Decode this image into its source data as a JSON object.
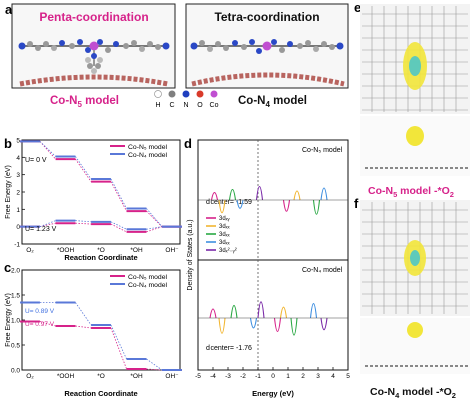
{
  "panels": {
    "a": {
      "letter": "a",
      "left_title": "Penta-coordination",
      "right_title": "Tetra-coordination",
      "left_model": "Co-N",
      "left_model_sub": "5",
      "left_model_tail": " model",
      "right_model": "Co-N",
      "right_model_sub": "4",
      "right_model_tail": " model",
      "legend": [
        {
          "label": "H",
          "color": "#ffffff"
        },
        {
          "label": "C",
          "color": "#7f7f7f"
        },
        {
          "label": "N",
          "color": "#1f3fbf"
        },
        {
          "label": "O",
          "color": "#d93a2a"
        },
        {
          "label": "Co",
          "color": "#c04fd1"
        }
      ]
    },
    "b": {
      "letter": "b",
      "ylabel": "Free Energy (eV)",
      "xlabel": "Reaction Coordinate",
      "annot_top": "U= 0 V",
      "annot_bottom": "U= 1.23 V",
      "categories": [
        "O₂",
        "*OOH",
        "*O",
        "*OH",
        "OH⁻"
      ],
      "legend": [
        {
          "label": "Co-N₅ model",
          "color": "#d6228a"
        },
        {
          "label": "Co-N₄ model",
          "color": "#5a78d8"
        }
      ],
      "yticks": [
        "-1",
        "0",
        "1",
        "2",
        "3",
        "4",
        "5"
      ]
    },
    "c": {
      "letter": "c",
      "ylabel": "Free Energy (eV)",
      "xlabel": "Reaction Coordinate",
      "annot_top": "U= 0.89 V",
      "annot_bottom": "U= 0.97 V",
      "categories": [
        "O₂",
        "*OOH",
        "*O",
        "*OH",
        "OH⁻"
      ],
      "legend": [
        {
          "label": "Co-N₅ model",
          "color": "#d6228a"
        },
        {
          "label": "Co-N₄ model",
          "color": "#5a78d8"
        }
      ],
      "yticks": [
        "0.0",
        "0.5",
        "1.0",
        "1.5",
        "2.0"
      ]
    },
    "d": {
      "letter": "d",
      "ylabel": "Density of States (a.u.)",
      "xlabel": "Energy (eV)",
      "top_label": "Co-N₅ model",
      "bottom_label": "Co-N₄ model",
      "top_dcenter": "d center= -1.59",
      "bottom_dcenter": "d center= -1.76",
      "xticks": [
        "-5",
        "-4",
        "-3",
        "-2",
        "-1",
        "0",
        "1",
        "2",
        "3",
        "4",
        "5"
      ],
      "orbitals": [
        {
          "label": "3dₓᵧ",
          "color": "#d6228a"
        },
        {
          "label": "3dₓₓ",
          "color": "#f2b632"
        },
        {
          "label": "3dₓₓ",
          "color": "#2aa844"
        },
        {
          "label": "3dₓₓ",
          "color": "#3f8fe0"
        },
        {
          "label": "3dₓ²₋ᵧ²",
          "color": "#7a2aa8"
        }
      ]
    },
    "e": {
      "letter": "e",
      "caption": "Co-N",
      "caption_sub": "5",
      "caption_tail": " model -*O",
      "caption_sub2": "2"
    },
    "f": {
      "letter": "f",
      "caption": "Co-N",
      "caption_sub": "4",
      "caption_tail": " model -*O",
      "caption_sub2": "2"
    }
  },
  "chart_data": [
    {
      "type": "line",
      "title": "",
      "xlabel": "Reaction Coordinate",
      "ylabel": "Free Energy (eV)",
      "categories": [
        "O₂",
        "*OOH",
        "*O",
        "*OH",
        "OH⁻"
      ],
      "ylim": [
        -1,
        5
      ],
      "series": [
        {
          "name": "Co-N₅ model (U=0 V)",
          "values": [
            4.92,
            3.9,
            2.6,
            0.9,
            0.0
          ]
        },
        {
          "name": "Co-N₄ model (U=0 V)",
          "values": [
            4.92,
            4.05,
            2.75,
            1.05,
            0.0
          ]
        },
        {
          "name": "Co-N₅ model (U=1.23 V)",
          "values": [
            0.0,
            0.2,
            0.15,
            -0.3,
            0.0
          ]
        },
        {
          "name": "Co-N₄ model (U=1.23 V)",
          "values": [
            0.0,
            0.35,
            0.28,
            -0.15,
            0.0
          ]
        }
      ]
    },
    {
      "type": "line",
      "title": "",
      "xlabel": "Reaction Coordinate",
      "ylabel": "Free Energy (eV)",
      "categories": [
        "O₂",
        "*OOH",
        "*O",
        "*OH",
        "OH⁻"
      ],
      "ylim": [
        0,
        2
      ],
      "series": [
        {
          "name": "Co-N₅ model",
          "values": [
            0.97,
            0.88,
            0.84,
            0.02,
            0.0
          ]
        },
        {
          "name": "Co-N₄ model",
          "values": [
            1.35,
            1.35,
            0.9,
            0.22,
            0.0
          ]
        }
      ]
    },
    {
      "type": "line",
      "title": "",
      "xlabel": "Energy (eV)",
      "ylabel": "Density of States (a.u.)",
      "xlim": [
        -5,
        5
      ],
      "series": [
        {
          "name": "Co-N₅ 3d peaks (top)",
          "values": [
            -3.9,
            -3.4,
            -2.7,
            -2.2,
            -0.9,
            0.9,
            1.6,
            2.9,
            3.4
          ]
        },
        {
          "name": "Co-N₄ 3d peaks (bottom)",
          "values": [
            -4.0,
            -3.4,
            -2.6,
            -1.3,
            -0.8,
            0.3,
            0.7,
            1.4,
            2.7,
            3.4
          ]
        }
      ]
    }
  ]
}
